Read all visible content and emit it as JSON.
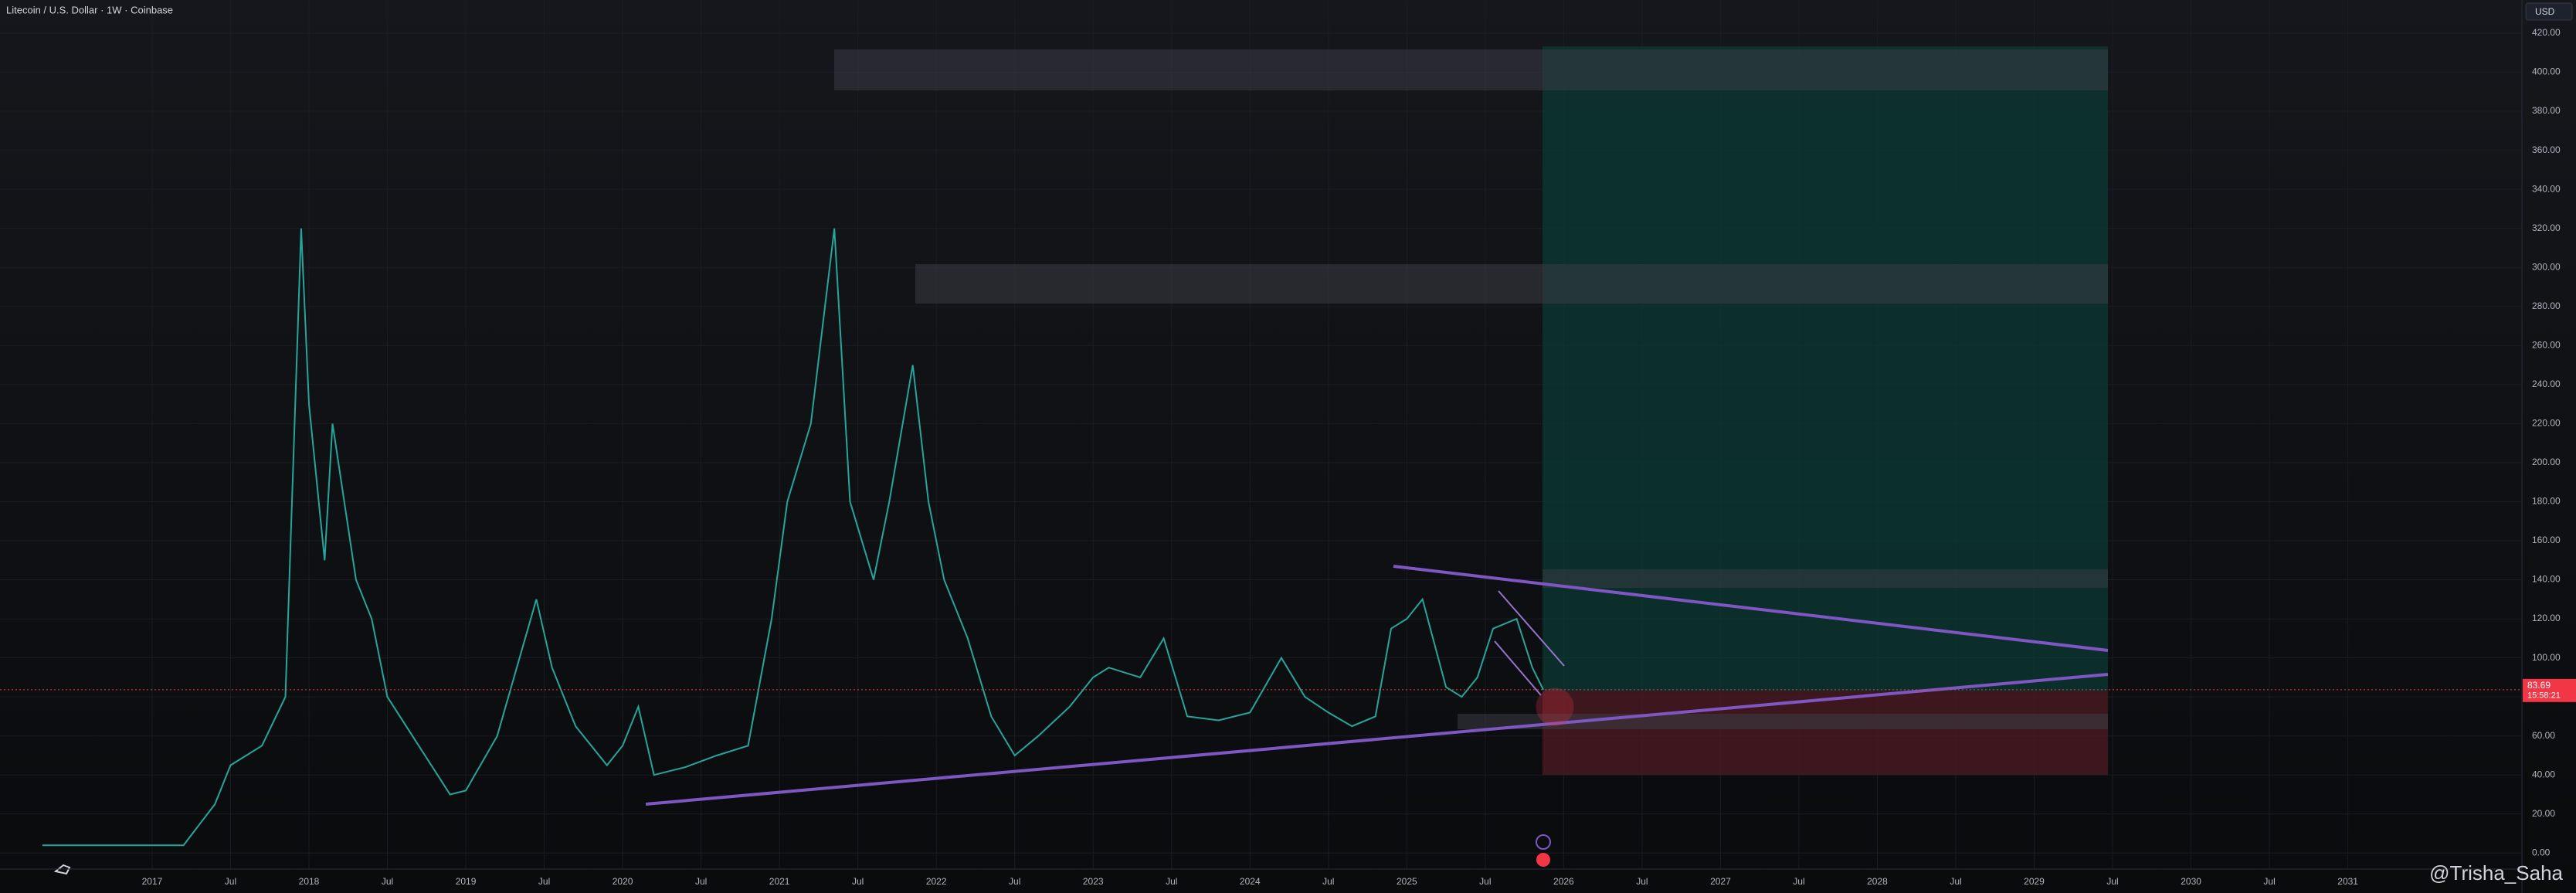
{
  "header": {
    "title": "Litecoin / U.S. Dollar · 1W · Coinbase",
    "currency": "USD",
    "watermark": "@Trisha_Saha"
  },
  "chart_data": {
    "type": "line",
    "color": "#26a69a",
    "x": [
      2016.3,
      2017.0,
      2017.2,
      2017.4,
      2017.5,
      2017.7,
      2017.85,
      2017.95,
      2018.0,
      2018.1,
      2018.15,
      2018.3,
      2018.4,
      2018.5,
      2018.7,
      2018.9,
      2019.0,
      2019.2,
      2019.45,
      2019.55,
      2019.7,
      2019.9,
      2020.0,
      2020.1,
      2020.2,
      2020.4,
      2020.6,
      2020.8,
      2020.95,
      2021.05,
      2021.2,
      2021.35,
      2021.4,
      2021.45,
      2021.6,
      2021.7,
      2021.85,
      2021.95,
      2022.05,
      2022.2,
      2022.35,
      2022.5,
      2022.65,
      2022.85,
      2023.0,
      2023.1,
      2023.3,
      2023.45,
      2023.6,
      2023.8,
      2024.0,
      2024.2,
      2024.35,
      2024.5,
      2024.65,
      2024.8,
      2024.9,
      2025.0,
      2025.1,
      2025.25,
      2025.35,
      2025.45,
      2025.55,
      2025.7,
      2025.8,
      2025.87
    ],
    "values": [
      4,
      4,
      4,
      25,
      45,
      55,
      80,
      320,
      230,
      150,
      220,
      140,
      120,
      80,
      55,
      30,
      32,
      60,
      130,
      95,
      65,
      45,
      55,
      75,
      40,
      44,
      50,
      55,
      120,
      180,
      220,
      320,
      250,
      180,
      140,
      180,
      250,
      180,
      140,
      110,
      70,
      50,
      60,
      75,
      90,
      95,
      90,
      110,
      70,
      68,
      72,
      100,
      80,
      72,
      65,
      70,
      115,
      120,
      130,
      85,
      80,
      90,
      115,
      120,
      95,
      83.69
    ],
    "xlim": [
      2016.03,
      2032.11
    ],
    "ylim": [
      -7,
      437
    ],
    "xticks": [
      {
        "value": 2017,
        "label": "2017"
      },
      {
        "value": 2017.5,
        "label": "Jul"
      },
      {
        "value": 2018,
        "label": "2018"
      },
      {
        "value": 2018.5,
        "label": "Jul"
      },
      {
        "value": 2019,
        "label": "2019"
      },
      {
        "value": 2019.5,
        "label": "Jul"
      },
      {
        "value": 2020,
        "label": "2020"
      },
      {
        "value": 2020.5,
        "label": "Jul"
      },
      {
        "value": 2021,
        "label": "2021"
      },
      {
        "value": 2021.5,
        "label": "Jul"
      },
      {
        "value": 2022,
        "label": "2022"
      },
      {
        "value": 2022.5,
        "label": "Jul"
      },
      {
        "value": 2023,
        "label": "2023"
      },
      {
        "value": 2023.5,
        "label": "Jul"
      },
      {
        "value": 2024,
        "label": "2024"
      },
      {
        "value": 2024.5,
        "label": "Jul"
      },
      {
        "value": 2025,
        "label": "2025"
      },
      {
        "value": 2025.5,
        "label": "Jul"
      },
      {
        "value": 2026,
        "label": "2026"
      },
      {
        "value": 2026.5,
        "label": "Jul"
      },
      {
        "value": 2027,
        "label": "2027"
      },
      {
        "value": 2027.5,
        "label": "Jul"
      },
      {
        "value": 2028,
        "label": "2028"
      },
      {
        "value": 2028.5,
        "label": "Jul"
      },
      {
        "value": 2029,
        "label": "2029"
      },
      {
        "value": 2029.5,
        "label": "Jul"
      },
      {
        "value": 2030,
        "label": "2030"
      },
      {
        "value": 2030.5,
        "label": "Jul"
      },
      {
        "value": 2031,
        "label": "2031"
      }
    ],
    "yticks": [
      {
        "value": 0,
        "label": "0.00"
      },
      {
        "value": 20,
        "label": "20.00"
      },
      {
        "value": 40,
        "label": "40.00"
      },
      {
        "value": 60,
        "label": "60.00"
      },
      {
        "value": 80,
        "label": "80.00"
      },
      {
        "value": 100,
        "label": "100.00"
      },
      {
        "value": 120,
        "label": "120.00"
      },
      {
        "value": 140,
        "label": "140.00"
      },
      {
        "value": 160,
        "label": "160.00"
      },
      {
        "value": 180,
        "label": "180.00"
      },
      {
        "value": 200,
        "label": "200.00"
      },
      {
        "value": 220,
        "label": "220.00"
      },
      {
        "value": 240,
        "label": "240.00"
      },
      {
        "value": 260,
        "label": "260.00"
      },
      {
        "value": 280,
        "label": "280.00"
      },
      {
        "value": 300,
        "label": "300.00"
      },
      {
        "value": 320,
        "label": "320.00"
      },
      {
        "value": 340,
        "label": "340.00"
      },
      {
        "value": 360,
        "label": "360.00"
      },
      {
        "value": 380,
        "label": "380.00"
      },
      {
        "value": 400,
        "label": "400.00"
      },
      {
        "value": 420,
        "label": "420.00"
      }
    ],
    "last_price": 83.69,
    "countdown": "15:58:21"
  }
}
